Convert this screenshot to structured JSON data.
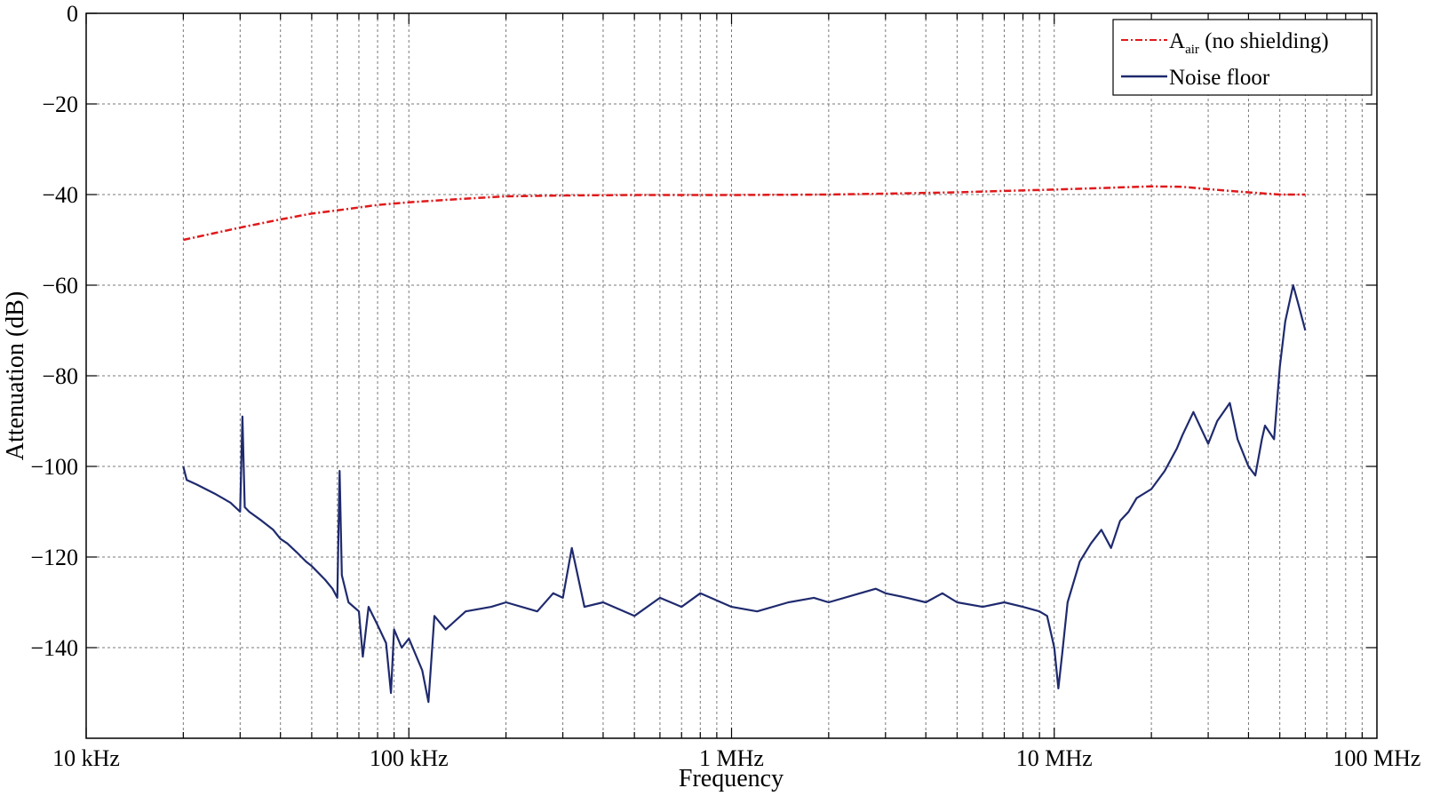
{
  "chart_data": {
    "type": "line",
    "xscale": "log",
    "xlim": [
      10000,
      100000000
    ],
    "ylim": [
      -160,
      0
    ],
    "xlabel": "Frequency",
    "ylabel": "Attenuation (dB)",
    "grid": true,
    "legend_position": "top-right",
    "x_ticks": [
      10000,
      100000,
      1000000,
      10000000,
      100000000
    ],
    "x_tick_labels": [
      "10 kHz",
      "100 kHz",
      "1 MHz",
      "10 MHz",
      "100 MHz"
    ],
    "y_ticks": [
      0,
      -20,
      -40,
      -60,
      -80,
      -100,
      -120,
      -140
    ],
    "y_tick_labels": [
      "0",
      "−20",
      "−40",
      "−60",
      "−80",
      "−100",
      "−120",
      "−140"
    ],
    "series": [
      {
        "name_main": "A",
        "name_sub": "air",
        "name_suffix": " (no shielding)",
        "color": "#e0191b",
        "style": "dash-dot",
        "x": [
          20000,
          25000,
          30000,
          40000,
          50000,
          60000,
          80000,
          100000,
          150000,
          200000,
          300000,
          500000,
          1000000,
          2000000,
          3000000,
          5000000,
          7000000,
          10000000,
          15000000,
          20000000,
          25000000,
          30000000,
          40000000,
          50000000,
          60000000
        ],
        "y": [
          -50,
          -48.5,
          -47.3,
          -45.5,
          -44.2,
          -43.5,
          -42.3,
          -41.7,
          -40.9,
          -40.4,
          -40.2,
          -40.1,
          -40.1,
          -40,
          -39.8,
          -39.5,
          -39.2,
          -38.9,
          -38.5,
          -38.2,
          -38.3,
          -38.8,
          -39.5,
          -40,
          -40
        ]
      },
      {
        "name": "Noise floor",
        "color": "#1f2a6e",
        "style": "solid",
        "x": [
          20000,
          20500,
          22000,
          25000,
          28000,
          30000,
          30500,
          31000,
          32000,
          35000,
          38000,
          40000,
          42000,
          45000,
          48000,
          50000,
          55000,
          58000,
          60000,
          61000,
          62000,
          65000,
          70000,
          72000,
          75000,
          80000,
          85000,
          88000,
          90000,
          95000,
          100000,
          110000,
          115000,
          120000,
          130000,
          150000,
          180000,
          200000,
          250000,
          280000,
          300000,
          320000,
          350000,
          400000,
          500000,
          600000,
          700000,
          800000,
          1000000,
          1200000,
          1500000,
          1800000,
          2000000,
          2500000,
          2800000,
          3000000,
          3500000,
          4000000,
          4500000,
          5000000,
          6000000,
          7000000,
          8000000,
          9000000,
          9500000,
          10000000,
          10300000,
          10600000,
          11000000,
          12000000,
          13000000,
          14000000,
          15000000,
          16000000,
          17000000,
          18000000,
          20000000,
          22000000,
          24000000,
          25000000,
          27000000,
          30000000,
          32000000,
          35000000,
          37000000,
          40000000,
          42000000,
          44000000,
          45000000,
          48000000,
          50000000,
          52000000,
          55000000,
          57000000,
          60000000
        ],
        "y": [
          -100,
          -103,
          -104,
          -106,
          -108,
          -110,
          -89,
          -109,
          -110,
          -112,
          -114,
          -116,
          -117,
          -119,
          -121,
          -122,
          -125,
          -127,
          -129,
          -101,
          -124,
          -130,
          -132,
          -142,
          -131,
          -135,
          -139,
          -150,
          -136,
          -140,
          -138,
          -145,
          -152,
          -133,
          -136,
          -132,
          -131,
          -130,
          -132,
          -128,
          -129,
          -118,
          -131,
          -130,
          -133,
          -129,
          -131,
          -128,
          -131,
          -132,
          -130,
          -129,
          -130,
          -128,
          -127,
          -128,
          -129,
          -130,
          -128,
          -130,
          -131,
          -130,
          -131,
          -132,
          -133,
          -140,
          -149,
          -141,
          -130,
          -121,
          -117,
          -114,
          -118,
          -112,
          -110,
          -107,
          -105,
          -101,
          -96,
          -93,
          -88,
          -95,
          -90,
          -86,
          -94,
          -100,
          -102,
          -94,
          -91,
          -94,
          -78,
          -68,
          -60,
          -64,
          -70
        ]
      }
    ]
  }
}
